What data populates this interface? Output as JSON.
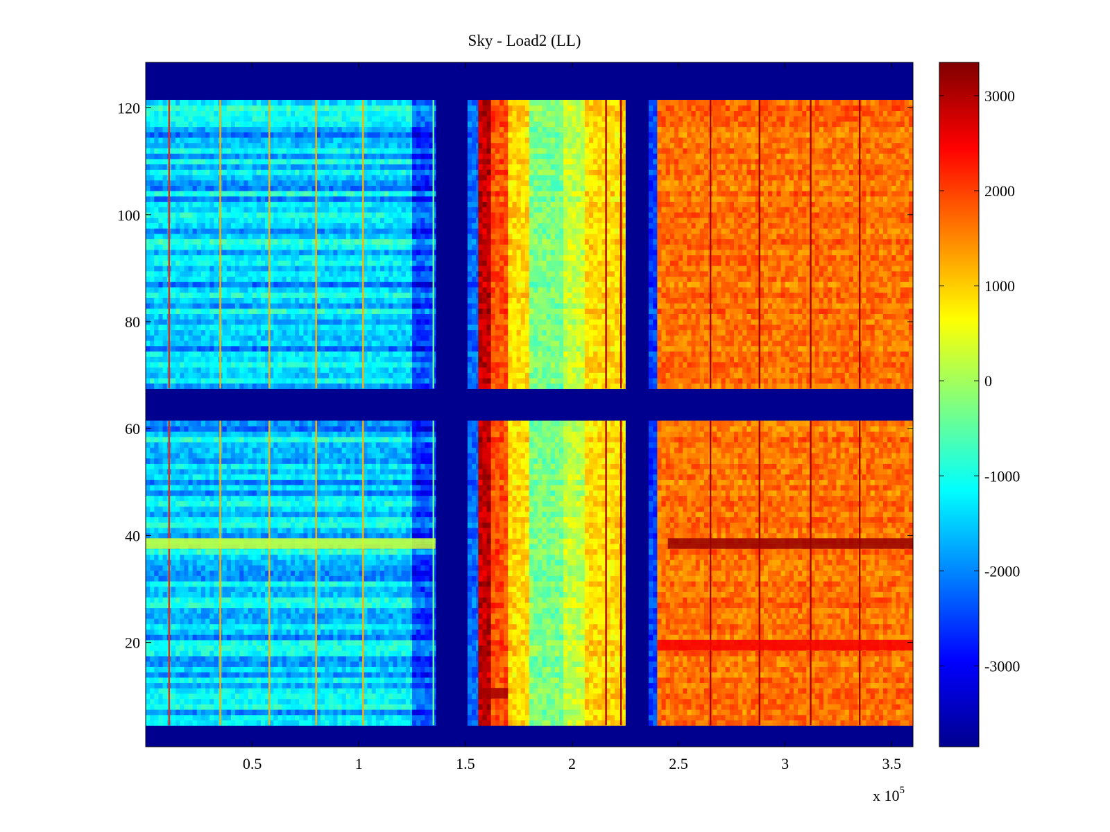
{
  "chart_data": {
    "type": "heatmap",
    "title": "Sky - Load2 (LL)",
    "xlabel": "",
    "ylabel": "",
    "x_multiplier": "x 10",
    "x_multiplier_exponent": "5",
    "xlim": [
      0,
      3.6
    ],
    "ylim": [
      1,
      128
    ],
    "x_ticks": [
      {
        "value": 0.5,
        "label": "0.5"
      },
      {
        "value": 1.0,
        "label": "1"
      },
      {
        "value": 1.5,
        "label": "1.5"
      },
      {
        "value": 2.0,
        "label": "2"
      },
      {
        "value": 2.5,
        "label": "2.5"
      },
      {
        "value": 3.0,
        "label": "3"
      },
      {
        "value": 3.5,
        "label": "3.5"
      }
    ],
    "y_ticks": [
      {
        "value": 20,
        "label": "20"
      },
      {
        "value": 40,
        "label": "40"
      },
      {
        "value": 60,
        "label": "60"
      },
      {
        "value": 80,
        "label": "80"
      },
      {
        "value": 100,
        "label": "100"
      },
      {
        "value": 120,
        "label": "120"
      }
    ],
    "colorbar": {
      "colormap": "jet",
      "range": [
        -3850,
        3350
      ],
      "ticks": [
        {
          "value": 3000,
          "label": "3000"
        },
        {
          "value": 2000,
          "label": "2000"
        },
        {
          "value": 1000,
          "label": "1000"
        },
        {
          "value": 0,
          "label": "0"
        },
        {
          "value": -1000,
          "label": "-1000"
        },
        {
          "value": -2000,
          "label": "-2000"
        },
        {
          "value": -3000,
          "label": "-3000"
        }
      ]
    },
    "blanked_rows": [
      [
        1,
        4
      ],
      [
        62,
        67
      ],
      [
        122,
        128
      ]
    ],
    "blanked_columns": [
      [
        1.36,
        1.51
      ],
      [
        2.25,
        2.36
      ]
    ],
    "column_bands": [
      {
        "x_range": [
          0.0,
          1.25
        ],
        "value": -1500
      },
      {
        "x_range": [
          1.25,
          1.36
        ],
        "value": -2500
      },
      {
        "x_range": [
          1.51,
          1.56
        ],
        "value": -2200
      },
      {
        "x_range": [
          1.56,
          1.62
        ],
        "value": 2900
      },
      {
        "x_range": [
          1.62,
          1.7
        ],
        "value": 1900
      },
      {
        "x_range": [
          1.7,
          1.8
        ],
        "value": 900
      },
      {
        "x_range": [
          1.8,
          1.96
        ],
        "value": -300
      },
      {
        "x_range": [
          1.96,
          2.06
        ],
        "value": 200
      },
      {
        "x_range": [
          2.06,
          2.25
        ],
        "value": 900
      },
      {
        "x_range": [
          2.36,
          2.4
        ],
        "value": -2500
      },
      {
        "x_range": [
          2.4,
          3.6
        ],
        "value": 1650
      }
    ],
    "stripe_columns": [
      {
        "x": 0.11,
        "value": 2200
      },
      {
        "x": 0.35,
        "value": 1200
      },
      {
        "x": 0.58,
        "value": 1200
      },
      {
        "x": 0.8,
        "value": 1200
      },
      {
        "x": 1.02,
        "value": 1200
      },
      {
        "x": 1.35,
        "value": -400
      },
      {
        "x": 2.16,
        "value": 3000
      },
      {
        "x": 2.23,
        "value": 3000
      },
      {
        "x": 2.65,
        "value": 3100
      },
      {
        "x": 2.88,
        "value": 3100
      },
      {
        "x": 3.12,
        "value": 3100
      },
      {
        "x": 3.35,
        "value": 3100
      }
    ],
    "row_anomalies": [
      {
        "rows": [
          38,
          39
        ],
        "x_range": [
          2.45,
          3.6
        ],
        "value": 3200
      },
      {
        "rows": [
          38,
          39
        ],
        "x_range": [
          0.0,
          1.36
        ],
        "value": 300
      },
      {
        "rows": [
          19,
          20
        ],
        "x_range": [
          2.4,
          3.6
        ],
        "value": 2500
      },
      {
        "rows": [
          10,
          11
        ],
        "x_range": [
          1.56,
          1.7
        ],
        "value": 3100
      }
    ]
  }
}
